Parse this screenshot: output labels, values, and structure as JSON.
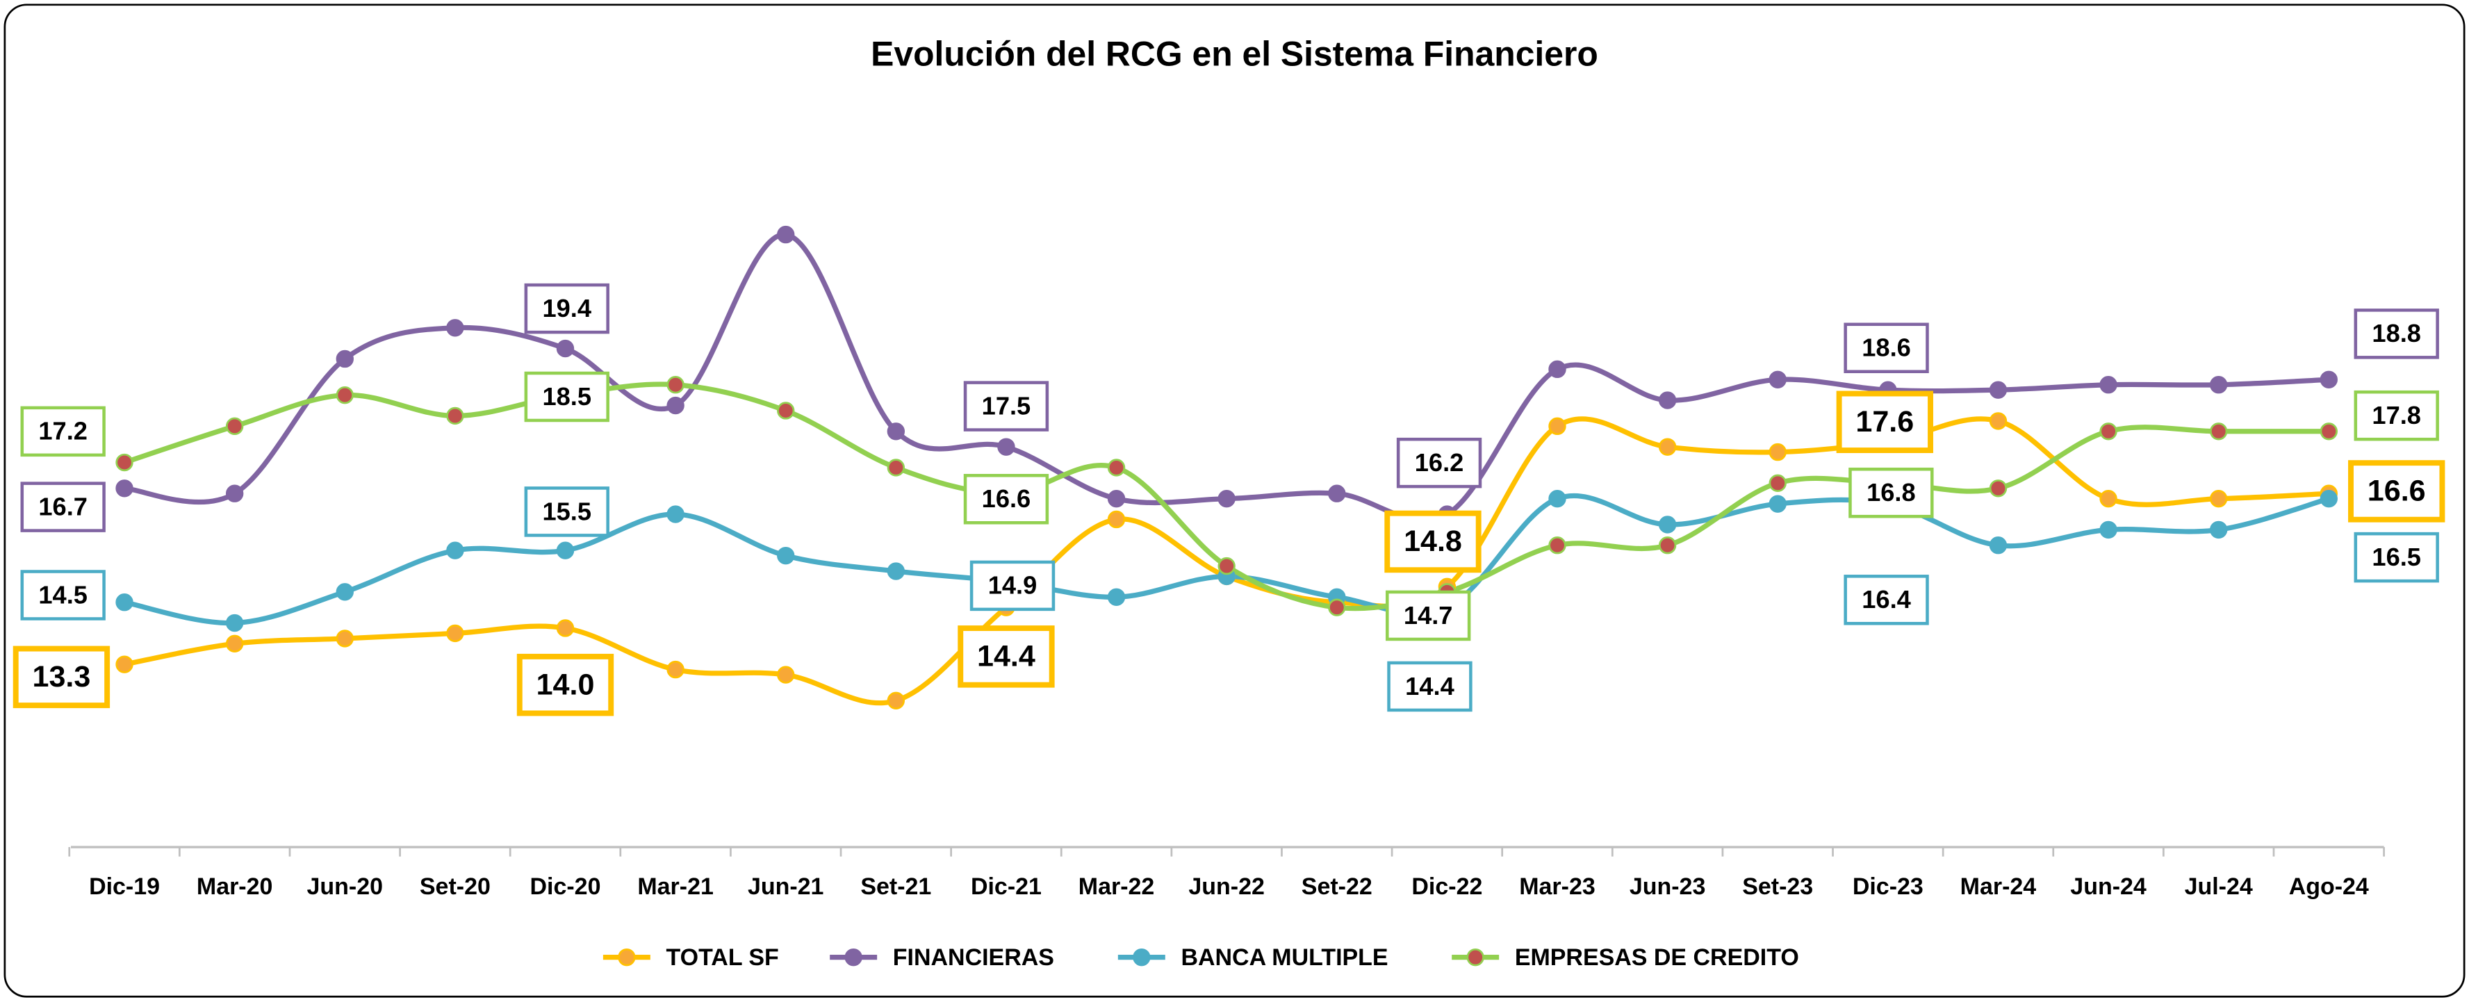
{
  "chart_data": {
    "type": "line",
    "title": "Evolución del RCG en el Sistema Financiero",
    "categories": [
      "Dic-19",
      "Mar-20",
      "Jun-20",
      "Set-20",
      "Dic-20",
      "Mar-21",
      "Jun-21",
      "Set-21",
      "Dic-21",
      "Mar-22",
      "Jun-22",
      "Set-22",
      "Dic-22",
      "Mar-23",
      "Jun-23",
      "Set-23",
      "Dic-23",
      "Mar-24",
      "Jun-24",
      "Jul-24",
      "Ago-24"
    ],
    "series": [
      {
        "name": "TOTAL SF",
        "color": "#FFC000",
        "marker_color": "#F7A836",
        "values": [
          13.3,
          13.7,
          13.8,
          13.9,
          14.0,
          13.2,
          13.1,
          12.6,
          14.4,
          16.1,
          15.0,
          14.5,
          14.8,
          17.9,
          17.5,
          17.4,
          17.6,
          18.0,
          16.5,
          16.5,
          16.6
        ],
        "value_labels": [
          "13.3",
          null,
          null,
          null,
          "14.0",
          null,
          null,
          null,
          "14.4",
          null,
          null,
          null,
          "14.8",
          null,
          null,
          null,
          "17.6",
          null,
          null,
          null,
          "16.6"
        ]
      },
      {
        "name": "FINANCIERAS",
        "color": "#8064A2",
        "marker_color": "#8064A2",
        "values": [
          16.7,
          16.6,
          19.2,
          19.8,
          19.4,
          18.3,
          21.6,
          17.8,
          17.5,
          16.5,
          16.5,
          16.6,
          16.2,
          19.0,
          18.4,
          18.8,
          18.6,
          18.6,
          18.7,
          18.7,
          18.8
        ],
        "value_labels": [
          "16.7",
          null,
          null,
          null,
          "19.4",
          null,
          null,
          null,
          "17.5",
          null,
          null,
          null,
          "16.2",
          null,
          null,
          null,
          "18.6",
          null,
          null,
          null,
          "18.8"
        ]
      },
      {
        "name": "BANCA MULTIPLE",
        "color": "#4BACC6",
        "marker_color": "#4BACC6",
        "values": [
          14.5,
          14.1,
          14.7,
          15.5,
          15.5,
          16.2,
          15.4,
          15.1,
          14.9,
          14.6,
          15.0,
          14.6,
          14.4,
          16.5,
          16.0,
          16.4,
          16.4,
          15.6,
          15.9,
          15.9,
          16.5
        ],
        "value_labels": [
          "14.5",
          null,
          null,
          null,
          "15.5",
          null,
          null,
          null,
          "14.9",
          null,
          null,
          null,
          "14.4",
          null,
          null,
          null,
          "16.4",
          null,
          null,
          null,
          "16.5"
        ]
      },
      {
        "name": "EMPRESAS DE CREDITO",
        "color": "#92D050",
        "marker_color": "#C0504D",
        "values": [
          17.2,
          17.9,
          18.5,
          18.1,
          18.5,
          18.7,
          18.2,
          17.1,
          16.6,
          17.1,
          15.2,
          14.4,
          14.7,
          15.6,
          15.6,
          16.8,
          16.8,
          16.7,
          17.8,
          17.8,
          17.8
        ],
        "value_labels": [
          "17.2",
          null,
          null,
          null,
          "18.5",
          null,
          null,
          null,
          "16.6",
          null,
          null,
          null,
          "14.7",
          null,
          null,
          null,
          "16.8",
          null,
          null,
          null,
          "17.8"
        ]
      }
    ],
    "legend": "bottom"
  }
}
